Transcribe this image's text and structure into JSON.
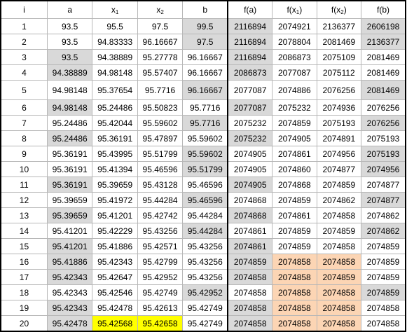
{
  "header": {
    "i": "i",
    "a": "a",
    "x1_base": "x",
    "x1_sub": "1",
    "x2_base": "x",
    "x2_sub": "2",
    "b": "b",
    "fa": "f(a)",
    "fx1_pre": "f(x",
    "fx1_sub": "1",
    "fx1_post": ")",
    "fx2_pre": "f(x",
    "fx2_sub": "2",
    "fx2_post": ")",
    "fb": "f(b)"
  },
  "highlight_colors": {
    "gray": "#d9d9d9",
    "yellow": "#ffff00",
    "orange": "#fcd5b4"
  },
  "rows": [
    {
      "cells": [
        "1",
        "93.5",
        "95.5",
        "97.5",
        "99.5",
        "2116894",
        "2074921",
        "2136377",
        "2606198"
      ],
      "marks": [
        "",
        "",
        "",
        "",
        "g",
        "g",
        "",
        "",
        "g"
      ]
    },
    {
      "cells": [
        "2",
        "93.5",
        "94.83333",
        "96.16667",
        "97.5",
        "2116894",
        "2078804",
        "2081469",
        "2136377"
      ],
      "marks": [
        "",
        "",
        "",
        "",
        "g",
        "g",
        "",
        "",
        "g"
      ]
    },
    {
      "cells": [
        "3",
        "93.5",
        "94.38889",
        "95.27778",
        "96.16667",
        "2116894",
        "2086873",
        "2075109",
        "2081469"
      ],
      "marks": [
        "",
        "g",
        "",
        "",
        "",
        "g",
        "",
        "",
        ""
      ]
    },
    {
      "cells": [
        "4",
        "94.38889",
        "94.98148",
        "95.57407",
        "96.16667",
        "2086873",
        "2077087",
        "2075112",
        "2081469"
      ],
      "marks": [
        "",
        "g",
        "",
        "",
        "",
        "g",
        "",
        "",
        ""
      ]
    },
    {
      "cells": [
        "5",
        "94.98148",
        "95.37654",
        "95.7716",
        "96.16667",
        "2077087",
        "2074886",
        "2076256",
        "2081469"
      ],
      "marks": [
        "",
        "",
        "",
        "",
        "g",
        "",
        "",
        "",
        "g"
      ],
      "tall": true
    },
    {
      "cells": [
        "6",
        "94.98148",
        "95.24486",
        "95.50823",
        "95.7716",
        "2077087",
        "2075232",
        "2074936",
        "2076256"
      ],
      "marks": [
        "",
        "g",
        "",
        "",
        "",
        "g",
        "",
        "",
        ""
      ]
    },
    {
      "cells": [
        "7",
        "95.24486",
        "95.42044",
        "95.59602",
        "95.7716",
        "2075232",
        "2074859",
        "2075193",
        "2076256"
      ],
      "marks": [
        "",
        "",
        "",
        "",
        "g",
        "",
        "",
        "",
        "g"
      ]
    },
    {
      "cells": [
        "8",
        "95.24486",
        "95.36191",
        "95.47897",
        "95.59602",
        "2075232",
        "2074905",
        "2074891",
        "2075193"
      ],
      "marks": [
        "",
        "g",
        "",
        "",
        "",
        "g",
        "",
        "",
        ""
      ]
    },
    {
      "cells": [
        "9",
        "95.36191",
        "95.43995",
        "95.51799",
        "95.59602",
        "2074905",
        "2074861",
        "2074956",
        "2075193"
      ],
      "marks": [
        "",
        "",
        "",
        "",
        "g",
        "",
        "",
        "",
        "g"
      ]
    },
    {
      "cells": [
        "10",
        "95.36191",
        "95.41394",
        "95.46596",
        "95.51799",
        "2074905",
        "2074860",
        "2074877",
        "2074956"
      ],
      "marks": [
        "",
        "",
        "",
        "",
        "g",
        "",
        "",
        "",
        "g"
      ]
    },
    {
      "cells": [
        "11",
        "95.36191",
        "95.39659",
        "95.43128",
        "95.46596",
        "2074905",
        "2074868",
        "2074859",
        "2074877"
      ],
      "marks": [
        "",
        "g",
        "",
        "",
        "",
        "g",
        "",
        "",
        ""
      ]
    },
    {
      "cells": [
        "12",
        "95.39659",
        "95.41972",
        "95.44284",
        "95.46596",
        "2074868",
        "2074859",
        "2074862",
        "2074877"
      ],
      "marks": [
        "",
        "",
        "",
        "",
        "g",
        "",
        "",
        "",
        "g"
      ]
    },
    {
      "cells": [
        "13",
        "95.39659",
        "95.41201",
        "95.42742",
        "95.44284",
        "2074868",
        "2074861",
        "2074858",
        "2074862"
      ],
      "marks": [
        "",
        "g",
        "",
        "",
        "",
        "g",
        "",
        "",
        ""
      ]
    },
    {
      "cells": [
        "14",
        "95.41201",
        "95.42229",
        "95.43256",
        "95.44284",
        "2074861",
        "2074859",
        "2074859",
        "2074862"
      ],
      "marks": [
        "",
        "",
        "",
        "",
        "g",
        "",
        "",
        "",
        "g"
      ]
    },
    {
      "cells": [
        "15",
        "95.41201",
        "95.41886",
        "95.42571",
        "95.43256",
        "2074861",
        "2074859",
        "2074858",
        "2074859"
      ],
      "marks": [
        "",
        "g",
        "",
        "",
        "",
        "g",
        "",
        "",
        ""
      ]
    },
    {
      "cells": [
        "16",
        "95.41886",
        "95.42343",
        "95.42799",
        "95.43256",
        "2074859",
        "2074858",
        "2074858",
        "2074859"
      ],
      "marks": [
        "",
        "g",
        "",
        "",
        "",
        "g",
        "o",
        "o",
        ""
      ]
    },
    {
      "cells": [
        "17",
        "95.42343",
        "95.42647",
        "95.42952",
        "95.43256",
        "2074858",
        "2074858",
        "2074859",
        "2074859"
      ],
      "marks": [
        "",
        "g",
        "",
        "",
        "",
        "g",
        "o",
        "o",
        ""
      ]
    },
    {
      "cells": [
        "18",
        "95.42343",
        "95.42546",
        "95.42749",
        "95.42952",
        "2074858",
        "2074858",
        "2074858",
        "2074859"
      ],
      "marks": [
        "",
        "",
        "",
        "",
        "g",
        "",
        "o",
        "o",
        "g"
      ]
    },
    {
      "cells": [
        "19",
        "95.42343",
        "95.42478",
        "95.42613",
        "95.42749",
        "2074858",
        "2074858",
        "2074858",
        "2074858"
      ],
      "marks": [
        "",
        "g",
        "",
        "",
        "",
        "g",
        "o",
        "o",
        ""
      ]
    },
    {
      "cells": [
        "20",
        "95.42478",
        "95.42568",
        "95.42658",
        "95.42749",
        "2074858",
        "2074858",
        "2074858",
        "2074858"
      ],
      "marks": [
        "",
        "g",
        "y",
        "y",
        "",
        "g",
        "o",
        "o",
        ""
      ]
    }
  ]
}
